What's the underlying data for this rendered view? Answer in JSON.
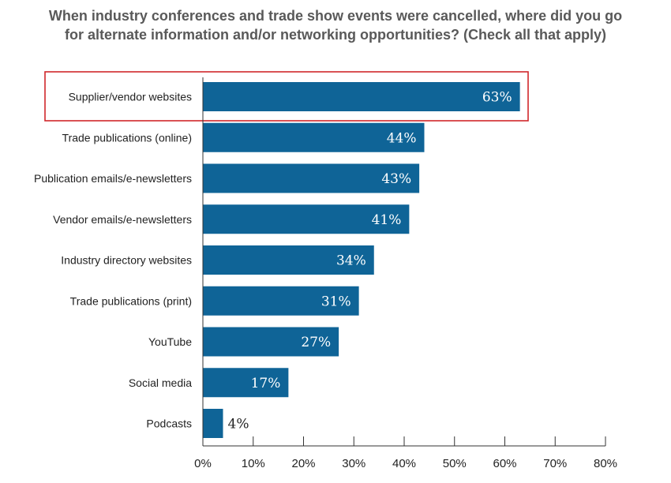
{
  "chart_data": {
    "type": "bar",
    "orientation": "horizontal",
    "title_lines": [
      "When industry conferences and trade show events were cancelled, where did you go",
      "for alternate information and/or networking opportunities? (Check all that apply)"
    ],
    "categories": [
      "Supplier/vendor websites",
      "Trade publications (online)",
      "Publication emails/e-newsletters",
      "Vendor emails/e-newsletters",
      "Industry directory websites",
      "Trade publications (print)",
      "YouTube",
      "Social media",
      "Podcasts"
    ],
    "values": [
      63,
      44,
      43,
      41,
      34,
      31,
      27,
      17,
      4
    ],
    "value_labels": [
      "63%",
      "44%",
      "43%",
      "41%",
      "34%",
      "31%",
      "27%",
      "17%",
      "4%"
    ],
    "xlim": [
      0,
      80
    ],
    "x_ticks": [
      0,
      10,
      20,
      30,
      40,
      50,
      60,
      70,
      80
    ],
    "x_tick_labels": [
      "0%",
      "10%",
      "20%",
      "30%",
      "40%",
      "50%",
      "60%",
      "70%",
      "80%"
    ],
    "highlighted_category": "Supplier/vendor websites",
    "grid": false,
    "legend": "none",
    "colors": {
      "bar": "#0f6497",
      "highlight_box": "#d0272b",
      "title": "#595959",
      "label_inside": "#ffffff",
      "label_outside": "#222222"
    }
  }
}
